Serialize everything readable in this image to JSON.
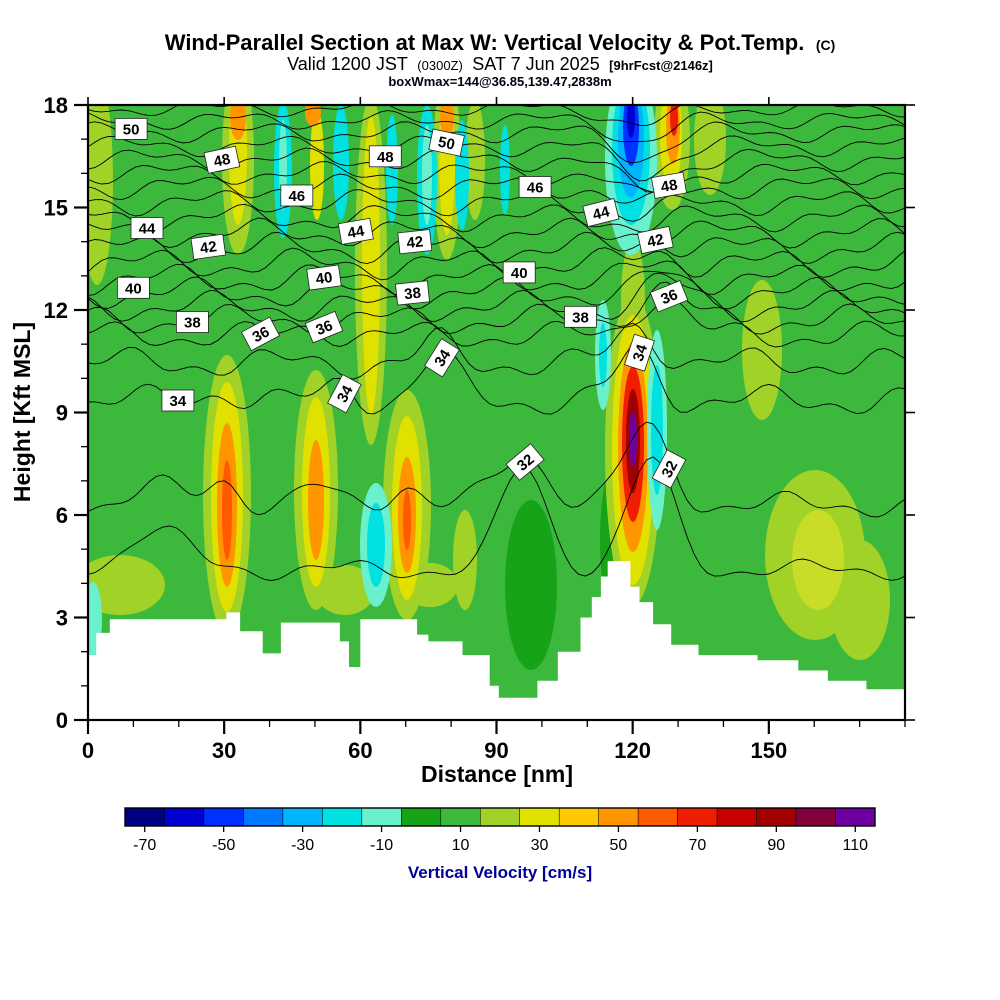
{
  "header": {
    "title_main": "Wind-Parallel Section at Max W: Vertical Velocity & Pot.Temp.",
    "title_unit": "(C)",
    "valid_prefix": "Valid 1200 JST",
    "valid_z": "(0300Z)",
    "valid_date": "SAT 7 Jun 2025",
    "valid_fcst": "[9hrFcst@2146z]",
    "box_info": "boxWmax=144@36.85,139.47,2838m"
  },
  "chart_data": {
    "type": "heatmap",
    "title": "Wind-Parallel Section at Max W: Vertical Velocity & Pot.Temp. (C)",
    "xlabel": "Distance [nm]",
    "ylabel": "Height [Kft MSL]",
    "xlim": [
      0,
      180
    ],
    "ylim": [
      0,
      18
    ],
    "x_ticks": [
      0,
      30,
      60,
      90,
      120,
      150
    ],
    "x_minor_step": 10,
    "y_ticks": [
      0,
      3,
      6,
      9,
      12,
      15,
      18
    ],
    "y_minor_step": 1,
    "grid": false,
    "fill_field": "vertical velocity filled contours (cm/s)",
    "line_field": "potential temperature line contours every 1 C",
    "background_value_cm_s": 10,
    "updrafts": [
      {
        "distance_nm": 30,
        "height_kft": [
          4,
          12
        ],
        "peak_cm_s": 60
      },
      {
        "distance_nm": 50,
        "height_kft": [
          4,
          11
        ],
        "peak_cm_s": 45
      },
      {
        "distance_nm": 70,
        "height_kft": [
          4.5,
          10.5
        ],
        "peak_cm_s": 55
      },
      {
        "distance_nm": 120,
        "height_kft": [
          4.5,
          12.5
        ],
        "peak_cm_s": 115
      },
      {
        "distance_nm": 129,
        "height_kft": [
          15.5,
          18
        ],
        "peak_cm_s": 60
      }
    ],
    "downdrafts": [
      {
        "distance_nm": 120,
        "height_kft": [
          15,
          18
        ],
        "peak_cm_s": -65
      },
      {
        "distance_nm": 126,
        "height_kft": [
          6,
          12
        ],
        "peak_cm_s": -30
      },
      {
        "distance_nm": 63,
        "height_kft": [
          4.5,
          7.5
        ],
        "peak_cm_s": -25
      }
    ],
    "colorbar": {
      "label": "Vertical Velocity [cm/s]",
      "tick_values": [
        -70,
        -50,
        -30,
        -10,
        10,
        30,
        50,
        70,
        90,
        110
      ],
      "range": [
        -75,
        115
      ],
      "colors": [
        "#000082",
        "#0000d2",
        "#0032ff",
        "#0078ff",
        "#00b4ff",
        "#00e1e1",
        "#69f0cd",
        "#17a317",
        "#3cb93c",
        "#a0d228",
        "#e1e100",
        "#ffc800",
        "#ff9600",
        "#ff5a00",
        "#f01e00",
        "#c80000",
        "#a00000",
        "#82003c",
        "#6e00a0"
      ]
    },
    "isotherms": [
      {
        "level": 32,
        "base": 4.4,
        "sin": 0.2,
        "bumps": [
          {
            "x": 96,
            "a": 3.0,
            "w": 7
          },
          {
            "x": 124,
            "a": 3.2,
            "w": 7
          },
          {
            "x": 15,
            "a": 1.2,
            "w": 9
          }
        ]
      },
      {
        "level": 33,
        "base": 6.3,
        "sin": 0.25,
        "bumps": [
          {
            "x": 96,
            "a": 1.4,
            "w": 8
          },
          {
            "x": 123,
            "a": 2.2,
            "w": 7
          },
          {
            "x": 30,
            "a": 0.7,
            "w": 5
          },
          {
            "x": 50,
            "a": 0.5,
            "w": 5
          },
          {
            "x": 70,
            "a": 0.6,
            "w": 5
          },
          {
            "x": 15,
            "a": 0.5,
            "w": 8
          }
        ]
      },
      {
        "level": 34,
        "base": 9.35,
        "sin": 0.3,
        "bumps": [
          {
            "x": 77,
            "a": 1.25,
            "w": 6
          },
          {
            "x": 121,
            "a": 1.45,
            "w": 6
          },
          {
            "x": 56,
            "a": 0.5,
            "w": 4
          },
          {
            "x": 30,
            "a": 0.3,
            "w": 5
          }
        ]
      },
      {
        "level": 35,
        "base": 10.45,
        "sin": 0.3,
        "bumps": [
          {
            "x": 121,
            "a": 1.1,
            "w": 6
          },
          {
            "x": 77,
            "a": 0.6,
            "w": 5
          }
        ]
      },
      {
        "level": 36,
        "base": 11.25,
        "sin": 0.28,
        "bumps": [
          {
            "x": 126,
            "a": 1.2,
            "w": 7
          },
          {
            "x": 50,
            "a": 0.25,
            "w": 6
          }
        ]
      },
      {
        "level": 37,
        "base": 11.7,
        "sin": 0.3,
        "bumps": [
          {
            "x": 126,
            "a": 0.9,
            "w": 7
          }
        ]
      },
      {
        "level": 38,
        "base": 12.1,
        "sin": 0.3,
        "bumps": [
          {
            "x": 127,
            "a": 0.7,
            "w": 7
          }
        ]
      },
      {
        "level": 39,
        "base": 12.5,
        "sin": 0.3,
        "bumps": [
          {
            "x": 127,
            "a": 0.5,
            "w": 6
          }
        ]
      },
      {
        "level": 40,
        "base": 12.9,
        "sin": 0.3,
        "bumps": [
          {
            "x": 127,
            "a": 0.45,
            "w": 6
          }
        ]
      },
      {
        "level": 41,
        "base": 13.35,
        "sin": 0.3,
        "bumps": [
          {
            "x": 126,
            "a": 0.35,
            "w": 6
          }
        ]
      },
      {
        "level": 42,
        "base": 13.8,
        "sin": 0.3,
        "bumps": [
          {
            "x": 126,
            "a": 0.3,
            "w": 6
          }
        ]
      },
      {
        "level": 43,
        "base": 14.25,
        "sin": 0.28,
        "bumps": [
          {
            "x": 124,
            "a": 0.1,
            "w": 6
          }
        ]
      },
      {
        "level": 44,
        "base": 14.7,
        "sin": 0.26,
        "bumps": [
          {
            "x": 122,
            "a": -0.15,
            "w": 7
          }
        ]
      },
      {
        "level": 45,
        "base": 15.15,
        "sin": 0.25,
        "bumps": [
          {
            "x": 122,
            "a": -0.4,
            "w": 7
          }
        ]
      },
      {
        "level": 46,
        "base": 15.6,
        "sin": 0.24,
        "bumps": [
          {
            "x": 122,
            "a": -0.6,
            "w": 7
          }
        ]
      },
      {
        "level": 47,
        "base": 16.0,
        "sin": 0.22,
        "bumps": [
          {
            "x": 122,
            "a": -0.75,
            "w": 7
          }
        ]
      },
      {
        "level": 48,
        "base": 16.4,
        "sin": 0.22,
        "bumps": [
          {
            "x": 122,
            "a": -0.85,
            "w": 8
          }
        ]
      },
      {
        "level": 49,
        "base": 16.8,
        "sin": 0.2,
        "bumps": [
          {
            "x": 122,
            "a": -0.8,
            "w": 8
          }
        ]
      },
      {
        "level": 50,
        "base": 17.2,
        "sin": 0.2,
        "bumps": [
          {
            "x": 122,
            "a": -0.7,
            "w": 8
          }
        ]
      },
      {
        "level": 51,
        "base": 17.55,
        "sin": 0.18,
        "bumps": [
          {
            "x": 122,
            "a": -0.6,
            "w": 8
          }
        ]
      },
      {
        "level": 52,
        "base": 17.9,
        "sin": 0.16,
        "bumps": [
          {
            "x": 122,
            "a": -0.5,
            "w": 8
          }
        ]
      },
      {
        "level": 53,
        "base": 18.25,
        "sin": 0.15,
        "bumps": []
      }
    ],
    "contour_labels": [
      {
        "v": "50",
        "x": 9.5,
        "y": 17.3,
        "r": 0
      },
      {
        "v": "50",
        "x": 79,
        "y": 16.9,
        "r": 12
      },
      {
        "v": "48",
        "x": 29.5,
        "y": 16.4,
        "r": -12
      },
      {
        "v": "48",
        "x": 65.5,
        "y": 16.5,
        "r": 0
      },
      {
        "v": "48",
        "x": 128,
        "y": 15.65,
        "r": -10
      },
      {
        "v": "46",
        "x": 46,
        "y": 15.35,
        "r": 0
      },
      {
        "v": "46",
        "x": 98.5,
        "y": 15.6,
        "r": 0
      },
      {
        "v": "44",
        "x": 13,
        "y": 14.4,
        "r": 0
      },
      {
        "v": "44",
        "x": 59,
        "y": 14.3,
        "r": -10
      },
      {
        "v": "44",
        "x": 113,
        "y": 14.85,
        "r": -14
      },
      {
        "v": "42",
        "x": 26.5,
        "y": 13.85,
        "r": -8
      },
      {
        "v": "42",
        "x": 72,
        "y": 14.0,
        "r": -6
      },
      {
        "v": "42",
        "x": 125,
        "y": 14.05,
        "r": -12
      },
      {
        "v": "40",
        "x": 10,
        "y": 12.65,
        "r": 0
      },
      {
        "v": "40",
        "x": 52,
        "y": 12.95,
        "r": -8
      },
      {
        "v": "40",
        "x": 95,
        "y": 13.1,
        "r": 0
      },
      {
        "v": "38",
        "x": 23,
        "y": 11.65,
        "r": 0
      },
      {
        "v": "38",
        "x": 71.5,
        "y": 12.5,
        "r": -6
      },
      {
        "v": "38",
        "x": 108.5,
        "y": 11.8,
        "r": 0
      },
      {
        "v": "36",
        "x": 38,
        "y": 11.3,
        "r": -28
      },
      {
        "v": "36",
        "x": 52,
        "y": 11.5,
        "r": -22
      },
      {
        "v": "36",
        "x": 128,
        "y": 12.4,
        "r": -22
      },
      {
        "v": "34",
        "x": 19.8,
        "y": 9.35,
        "r": 0
      },
      {
        "v": "34",
        "x": 56.5,
        "y": 9.55,
        "r": -62
      },
      {
        "v": "34",
        "x": 78,
        "y": 10.6,
        "r": -58
      },
      {
        "v": "34",
        "x": 121.5,
        "y": 10.75,
        "r": -72
      },
      {
        "v": "32",
        "x": 96.3,
        "y": 7.55,
        "r": -40
      },
      {
        "v": "32",
        "x": 128,
        "y": 7.35,
        "r": -62
      }
    ],
    "terrain_profile": [
      [
        0,
        1.9
      ],
      [
        1.8,
        1.9
      ],
      [
        1.8,
        2.55
      ],
      [
        4.8,
        2.55
      ],
      [
        4.8,
        2.95
      ],
      [
        30.5,
        2.95
      ],
      [
        30.5,
        3.15
      ],
      [
        33.5,
        3.15
      ],
      [
        33.5,
        2.6
      ],
      [
        38.5,
        2.6
      ],
      [
        38.5,
        1.95
      ],
      [
        42.5,
        1.95
      ],
      [
        42.5,
        2.85
      ],
      [
        55.5,
        2.85
      ],
      [
        55.5,
        2.3
      ],
      [
        57.5,
        2.3
      ],
      [
        57.5,
        1.55
      ],
      [
        60,
        1.55
      ],
      [
        60,
        2.95
      ],
      [
        72.5,
        2.95
      ],
      [
        72.5,
        2.5
      ],
      [
        75,
        2.5
      ],
      [
        75,
        2.3
      ],
      [
        82.5,
        2.3
      ],
      [
        82.5,
        1.9
      ],
      [
        88.5,
        1.9
      ],
      [
        88.5,
        1.0
      ],
      [
        90.5,
        1.0
      ],
      [
        90.5,
        0.65
      ],
      [
        99,
        0.65
      ],
      [
        99,
        1.15
      ],
      [
        103.5,
        1.15
      ],
      [
        103.5,
        2.0
      ],
      [
        108.5,
        2.0
      ],
      [
        108.5,
        3.0
      ],
      [
        111,
        3.0
      ],
      [
        111,
        3.6
      ],
      [
        113,
        3.6
      ],
      [
        113,
        4.2
      ],
      [
        114.5,
        4.2
      ],
      [
        114.5,
        4.65
      ],
      [
        119.5,
        4.65
      ],
      [
        119.5,
        3.9
      ],
      [
        121.5,
        3.9
      ],
      [
        121.5,
        3.45
      ],
      [
        124.5,
        3.45
      ],
      [
        124.5,
        2.8
      ],
      [
        128.5,
        2.8
      ],
      [
        128.5,
        2.2
      ],
      [
        134.5,
        2.2
      ],
      [
        134.5,
        1.9
      ],
      [
        147.5,
        1.9
      ],
      [
        147.5,
        1.75
      ],
      [
        156.5,
        1.75
      ],
      [
        156.5,
        1.45
      ],
      [
        163,
        1.45
      ],
      [
        163,
        1.15
      ],
      [
        171.5,
        1.15
      ],
      [
        171.5,
        0.9
      ],
      [
        180,
        0.9
      ]
    ]
  }
}
